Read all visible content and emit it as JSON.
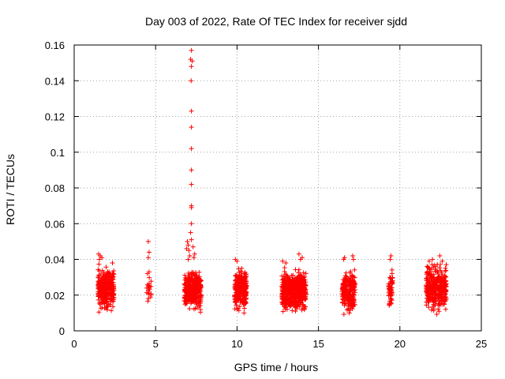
{
  "chart_data": {
    "type": "scatter",
    "title": "Day 003 of 2022, Rate Of TEC Index for receiver sjdd",
    "xlabel": "GPS time / hours",
    "ylabel": "ROTI / TECUs",
    "xlim": [
      0,
      25
    ],
    "ylim": [
      0,
      0.16
    ],
    "xticks": [
      0,
      5,
      10,
      15,
      20,
      25
    ],
    "xtick_labels": [
      "0",
      "5",
      "10",
      "15",
      "20",
      "25"
    ],
    "yticks": [
      0,
      0.02,
      0.04,
      0.06,
      0.08,
      0.1,
      0.12,
      0.14,
      0.16
    ],
    "ytick_labels": [
      "0",
      "0.02",
      "0.04",
      "0.06",
      "0.08",
      "0.1",
      "0.12",
      "0.14",
      "0.16"
    ],
    "grid": true,
    "marker": "plus",
    "marker_color": "#ff0000",
    "series": [
      {
        "name": "ROTI",
        "clusters": [
          {
            "x_range": [
              1.45,
              2.45
            ],
            "y_range": [
              0.009,
              0.038
            ],
            "count": 320,
            "seed": 11
          },
          {
            "x_range": [
              4.45,
              4.75
            ],
            "y_range": [
              0.013,
              0.034
            ],
            "count": 20,
            "seed": 12
          },
          {
            "x_range": [
              6.75,
              7.8
            ],
            "y_range": [
              0.01,
              0.036
            ],
            "count": 340,
            "seed": 13
          },
          {
            "x_range": [
              9.85,
              10.6
            ],
            "y_range": [
              0.008,
              0.038
            ],
            "count": 260,
            "seed": 14
          },
          {
            "x_range": [
              12.75,
              14.25
            ],
            "y_range": [
              0.008,
              0.037
            ],
            "count": 520,
            "seed": 15
          },
          {
            "x_range": [
              16.45,
              17.25
            ],
            "y_range": [
              0.006,
              0.038
            ],
            "count": 250,
            "seed": 16
          },
          {
            "x_range": [
              19.3,
              19.55
            ],
            "y_range": [
              0.01,
              0.038
            ],
            "count": 60,
            "seed": 17
          },
          {
            "x_range": [
              21.6,
              22.85
            ],
            "y_range": [
              0.008,
              0.04
            ],
            "count": 380,
            "seed": 18
          }
        ],
        "outliers": [
          {
            "x": 7.2,
            "y": 0.157
          },
          {
            "x": 7.15,
            "y": 0.152
          },
          {
            "x": 7.25,
            "y": 0.151
          },
          {
            "x": 7.2,
            "y": 0.148
          },
          {
            "x": 7.18,
            "y": 0.14
          },
          {
            "x": 7.2,
            "y": 0.123
          },
          {
            "x": 7.2,
            "y": 0.114
          },
          {
            "x": 7.2,
            "y": 0.102
          },
          {
            "x": 7.2,
            "y": 0.09
          },
          {
            "x": 7.2,
            "y": 0.082
          },
          {
            "x": 7.2,
            "y": 0.07
          },
          {
            "x": 7.2,
            "y": 0.069
          },
          {
            "x": 7.2,
            "y": 0.06
          },
          {
            "x": 7.15,
            "y": 0.055
          },
          {
            "x": 7.2,
            "y": 0.051
          },
          {
            "x": 6.95,
            "y": 0.05
          },
          {
            "x": 7.0,
            "y": 0.048
          },
          {
            "x": 6.9,
            "y": 0.046
          },
          {
            "x": 7.05,
            "y": 0.045
          },
          {
            "x": 7.3,
            "y": 0.047
          },
          {
            "x": 7.4,
            "y": 0.043
          },
          {
            "x": 7.1,
            "y": 0.042
          },
          {
            "x": 7.35,
            "y": 0.041
          },
          {
            "x": 7.0,
            "y": 0.04
          },
          {
            "x": 4.55,
            "y": 0.05
          },
          {
            "x": 4.6,
            "y": 0.044
          },
          {
            "x": 4.55,
            "y": 0.041
          },
          {
            "x": 4.6,
            "y": 0.033
          },
          {
            "x": 4.5,
            "y": 0.032
          },
          {
            "x": 1.5,
            "y": 0.043
          },
          {
            "x": 1.6,
            "y": 0.042
          },
          {
            "x": 1.7,
            "y": 0.041
          },
          {
            "x": 1.55,
            "y": 0.04
          },
          {
            "x": 2.35,
            "y": 0.038
          },
          {
            "x": 9.9,
            "y": 0.04
          },
          {
            "x": 10.0,
            "y": 0.039
          },
          {
            "x": 12.8,
            "y": 0.039
          },
          {
            "x": 13.0,
            "y": 0.038
          },
          {
            "x": 13.8,
            "y": 0.043
          },
          {
            "x": 14.0,
            "y": 0.041
          },
          {
            "x": 13.9,
            "y": 0.04
          },
          {
            "x": 16.6,
            "y": 0.041
          },
          {
            "x": 16.55,
            "y": 0.04
          },
          {
            "x": 17.1,
            "y": 0.042
          },
          {
            "x": 17.15,
            "y": 0.04
          },
          {
            "x": 19.45,
            "y": 0.042
          },
          {
            "x": 19.4,
            "y": 0.04
          },
          {
            "x": 21.8,
            "y": 0.039
          },
          {
            "x": 22.0,
            "y": 0.04
          },
          {
            "x": 22.45,
            "y": 0.042
          },
          {
            "x": 22.6,
            "y": 0.039
          }
        ]
      }
    ]
  }
}
